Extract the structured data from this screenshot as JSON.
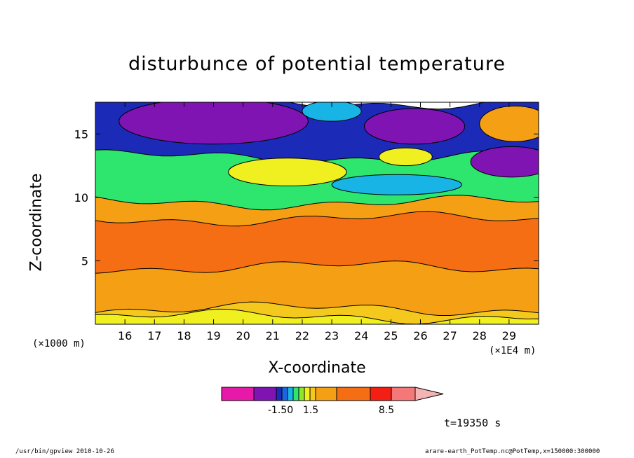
{
  "chart_data": {
    "type": "heatmap",
    "title": "disturbunce of potential temperature",
    "xlabel": "X-coordinate",
    "ylabel": "Z-coordinate",
    "xlim": [
      15.0,
      30.0
    ],
    "ylim": [
      0.0,
      17.5
    ],
    "x_ticks": [
      "16",
      "17",
      "18",
      "19",
      "20",
      "21",
      "22",
      "23",
      "24",
      "25",
      "26",
      "27",
      "28",
      "29"
    ],
    "y_ticks": [
      "5",
      "10",
      "15"
    ],
    "x_unit": "(×1E4 m)",
    "y_unit": "(×1000 m)",
    "colorbar": {
      "levels": [
        "-1.50",
        "1.5",
        "8.5"
      ],
      "colors": [
        "#e619a8",
        "#7f14b2",
        "#1c2ab8",
        "#1a66e0",
        "#19b4e6",
        "#2ee66e",
        "#8ee62e",
        "#f0f020",
        "#f5c81e",
        "#f5a014",
        "#f56e14",
        "#f51e14",
        "#f57878",
        "#f5b4b4"
      ]
    },
    "layers": [
      {
        "name": "bottom-band-1",
        "z_top": 0.6,
        "color": "#f0f020"
      },
      {
        "name": "bottom-band-2",
        "z_top": 1.2,
        "color": "#f5c81e"
      },
      {
        "name": "lower-orange",
        "z_top": 4.5,
        "color": "#f5a014"
      },
      {
        "name": "core",
        "z_top": 8.3,
        "color": "#f56e14"
      },
      {
        "name": "upper-orange",
        "z_top": 9.6,
        "color": "#f5a014"
      },
      {
        "name": "mixed-zone",
        "z_top": 13.2,
        "color": "#2ee66e"
      },
      {
        "name": "upper-jet",
        "z_top": 17.5,
        "color": "#1c2ab8"
      }
    ]
  },
  "annotations": {
    "time": "t=19350 s",
    "x_unit": "(×1E4 m)",
    "y_unit": "(×1000 m)"
  },
  "footer": {
    "left": "/usr/bin/gpview   2010-10-26",
    "right": "arare-earth_PotTemp.nc@PotTemp,x=150000:300000"
  }
}
